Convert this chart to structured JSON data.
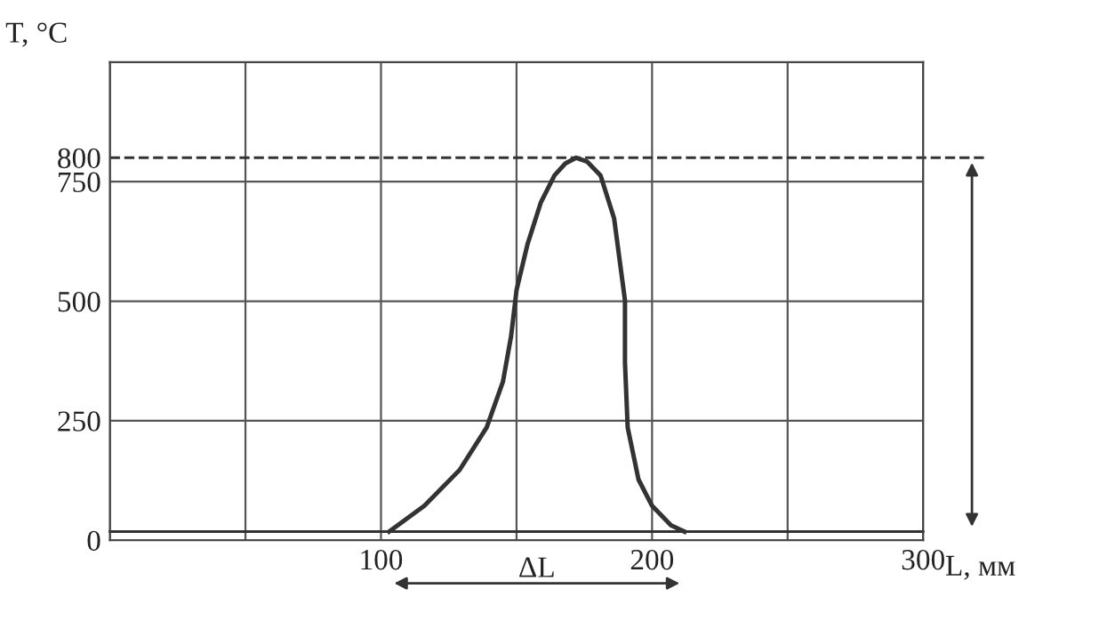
{
  "chart_data": {
    "type": "line",
    "xlabel": "L, мм",
    "ylabel": "T, °C",
    "annotations": [
      "ΔL"
    ],
    "series": [
      {
        "color": "#333333",
        "x": [
          103,
          116,
          129,
          139,
          145,
          148,
          150,
          154,
          159,
          164,
          168,
          172,
          176,
          181,
          186,
          190,
          190,
          191,
          195,
          200,
          207,
          212
        ],
        "values": [
          18,
          72,
          147,
          236,
          332,
          427,
          523,
          618,
          707,
          763,
          788,
          800,
          792,
          763,
          673,
          502,
          372,
          236,
          127,
          72,
          31,
          18
        ]
      }
    ],
    "xlim": [
      0,
      300
    ],
    "ylim": [
      0,
      1000
    ],
    "xticks": [
      {
        "value": 0,
        "label": null
      },
      {
        "value": 50,
        "label": null
      },
      100,
      {
        "value": 150,
        "label": null
      },
      200,
      {
        "value": 250,
        "label": null
      },
      300
    ],
    "yticks": [
      0,
      250,
      500,
      750,
      800
    ],
    "ref_lines": [
      {
        "axis": "y",
        "value": 800,
        "line_style": "dashed",
        "color": "#333333"
      },
      {
        "axis": "y",
        "value": 18,
        "color": "#333333"
      }
    ],
    "grid": true,
    "legend": false,
    "marker": "none",
    "line_style": "solid"
  }
}
